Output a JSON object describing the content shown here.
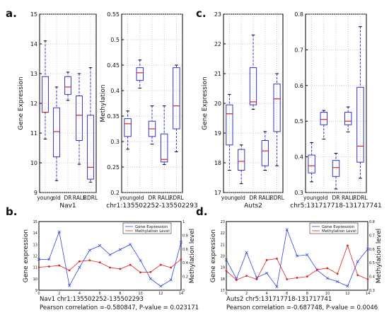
{
  "panel_letters": {
    "a": "a.",
    "b": "b.",
    "c": "c.",
    "d": "d."
  },
  "captions": {
    "b_line1": "Nav1  chr1:135502252-135502293",
    "b_line2": "Pearson correlation =-0.580847, P-value = 0.023171",
    "d_line1": "Auts2  chr5:131717718-131717741",
    "d_line2": "Pearson correlation =-0.687748, P-value = 0.0046"
  },
  "colors": {
    "box": "#3333cc",
    "median": "#dd2222",
    "expr": "#3344dd",
    "meth": "#dd2222"
  },
  "chart_data": [
    {
      "id": "a_expr",
      "type": "box",
      "xlabel": "Nav1",
      "ylabel": "Gene Expression",
      "categories": [
        "young",
        "old",
        "DR",
        "RALL",
        "RDRL"
      ],
      "ylim": [
        9,
        15
      ],
      "yticks": [
        9,
        10,
        11,
        12,
        13,
        14,
        15
      ],
      "boxes": [
        {
          "whislo": 10.8,
          "q1": 11.7,
          "med": 11.7,
          "q3": 12.9,
          "whishi": 14.1
        },
        {
          "whislo": 9.4,
          "q1": 10.2,
          "med": 11.05,
          "q3": 11.85,
          "whishi": 12.55
        },
        {
          "whislo": 12.1,
          "q1": 12.3,
          "med": 12.55,
          "q3": 12.9,
          "whishi": 13.05
        },
        {
          "whislo": 9.95,
          "q1": 10.75,
          "med": 11.6,
          "q3": 12.25,
          "whishi": 13.0
        },
        {
          "whislo": 9.35,
          "q1": 9.45,
          "med": 9.85,
          "q3": 11.6,
          "whishi": 13.2
        }
      ]
    },
    {
      "id": "a_meth",
      "type": "box",
      "xlabel": "chr1:135502252-135502293",
      "ylabel": "Methylation",
      "categories": [
        "young",
        "old",
        "DR",
        "RALL",
        "RDRL"
      ],
      "ylim": [
        0.2,
        0.55
      ],
      "yticks": [
        0.2,
        0.25,
        0.3,
        0.35,
        0.4,
        0.45,
        0.5,
        0.55
      ],
      "boxes": [
        {
          "whislo": 0.285,
          "q1": 0.31,
          "med": 0.335,
          "q3": 0.345,
          "whishi": 0.36
        },
        {
          "whislo": 0.405,
          "q1": 0.42,
          "med": 0.435,
          "q3": 0.445,
          "whishi": 0.46
        },
        {
          "whislo": 0.295,
          "q1": 0.31,
          "med": 0.325,
          "q3": 0.34,
          "whishi": 0.37
        },
        {
          "whislo": 0.255,
          "q1": 0.26,
          "med": 0.265,
          "q3": 0.315,
          "whishi": 0.37
        },
        {
          "whislo": 0.28,
          "q1": 0.325,
          "med": 0.37,
          "q3": 0.445,
          "whishi": 0.45
        }
      ]
    },
    {
      "id": "c_expr",
      "type": "box",
      "xlabel": "Auts2",
      "ylabel": "Gene Expression",
      "categories": [
        "young",
        "old",
        "DR",
        "RALL",
        "RDRL"
      ],
      "ylim": [
        17,
        23
      ],
      "yticks": [
        17,
        18,
        19,
        20,
        21,
        22,
        23
      ],
      "boxes": [
        {
          "whislo": 17.75,
          "q1": 18.6,
          "med": 19.65,
          "q3": 19.95,
          "whishi": 20.3
        },
        {
          "whislo": 17.3,
          "q1": 17.75,
          "med": 18.05,
          "q3": 18.45,
          "whishi": 18.6
        },
        {
          "whislo": 19.8,
          "q1": 19.95,
          "med": 20.05,
          "q3": 21.2,
          "whishi": 22.3
        },
        {
          "whislo": 17.75,
          "q1": 17.9,
          "med": 18.4,
          "q3": 18.75,
          "whishi": 19.05
        },
        {
          "whislo": 17.9,
          "q1": 19.05,
          "med": 20.15,
          "q3": 20.65,
          "whishi": 21.0
        }
      ]
    },
    {
      "id": "c_meth",
      "type": "box",
      "xlabel": "chr5:131717718-131717741",
      "ylabel": "",
      "categories": [
        "young",
        "old",
        "DR",
        "RALL",
        "RDRL"
      ],
      "ylim": [
        0.3,
        0.8
      ],
      "yticks": [
        0.3,
        0.4,
        0.5,
        0.6,
        0.7,
        0.8
      ],
      "boxes": [
        {
          "whislo": 0.33,
          "q1": 0.355,
          "med": 0.375,
          "q3": 0.405,
          "whishi": 0.44
        },
        {
          "whislo": 0.45,
          "q1": 0.49,
          "med": 0.505,
          "q3": 0.525,
          "whishi": 0.53
        },
        {
          "whislo": 0.31,
          "q1": 0.345,
          "med": 0.37,
          "q3": 0.39,
          "whishi": 0.41
        },
        {
          "whislo": 0.47,
          "q1": 0.49,
          "med": 0.5,
          "q3": 0.525,
          "whishi": 0.54
        },
        {
          "whislo": 0.34,
          "q1": 0.385,
          "med": 0.43,
          "q3": 0.595,
          "whishi": 0.765
        }
      ]
    },
    {
      "id": "b_line",
      "type": "line",
      "xlabel": "",
      "ylabel": "Gene expression",
      "y2label": "Methylation level",
      "x": [
        0,
        1,
        2,
        3,
        4,
        5,
        6,
        7,
        8,
        9,
        10,
        11,
        12,
        13,
        14
      ],
      "xlim": [
        0,
        14
      ],
      "xticks": [
        0,
        2,
        4,
        6,
        8,
        10,
        12,
        14
      ],
      "ylim": [
        9,
        15
      ],
      "yticks": [
        9,
        10,
        11,
        12,
        13,
        14,
        15
      ],
      "y2lim": [
        0,
        1
      ],
      "y2ticks": [
        0,
        0.2,
        0.4,
        0.6,
        0.8,
        1
      ],
      "legend": [
        "Gene Expression",
        "Methylation Level"
      ],
      "series": [
        {
          "name": "Gene Expression",
          "axis": "left",
          "values": [
            11.7,
            11.7,
            14.1,
            9.4,
            11.0,
            12.5,
            12.9,
            12.1,
            12.55,
            13.0,
            11.6,
            10.0,
            9.35,
            9.9,
            13.2
          ]
        },
        {
          "name": "Methylation Level",
          "axis": "right",
          "values": [
            0.335,
            0.345,
            0.36,
            0.29,
            0.42,
            0.435,
            0.405,
            0.33,
            0.31,
            0.37,
            0.26,
            0.265,
            0.37,
            0.33,
            0.45
          ]
        }
      ]
    },
    {
      "id": "d_line",
      "type": "line",
      "xlabel": "",
      "ylabel": "Gene expression",
      "y2label": "Methylation level",
      "x": [
        0,
        1,
        2,
        3,
        4,
        5,
        6,
        7,
        8,
        9,
        10,
        11,
        12,
        13,
        14
      ],
      "xlim": [
        0,
        14
      ],
      "xticks": [
        0,
        2,
        4,
        6,
        8,
        10,
        12,
        14
      ],
      "ylim": [
        17,
        23
      ],
      "yticks": [
        17,
        18,
        19,
        20,
        21,
        22,
        23
      ],
      "y2lim": [
        0.3,
        0.8
      ],
      "y2ticks": [
        0.3,
        0.4,
        0.5,
        0.6,
        0.7,
        0.8
      ],
      "legend": [
        "Gene Expression",
        "Methylation Level"
      ],
      "series": [
        {
          "name": "Gene Expression",
          "axis": "left",
          "values": [
            19.65,
            18.0,
            20.3,
            18.1,
            18.5,
            17.3,
            22.3,
            20.0,
            20.1,
            18.75,
            18.05,
            17.75,
            17.35,
            19.5,
            20.6
          ]
        },
        {
          "name": "Methylation Level",
          "axis": "right",
          "values": [
            0.44,
            0.375,
            0.405,
            0.38,
            0.52,
            0.53,
            0.38,
            0.39,
            0.4,
            0.45,
            0.46,
            0.42,
            0.625,
            0.41,
            0.38
          ]
        }
      ]
    }
  ]
}
